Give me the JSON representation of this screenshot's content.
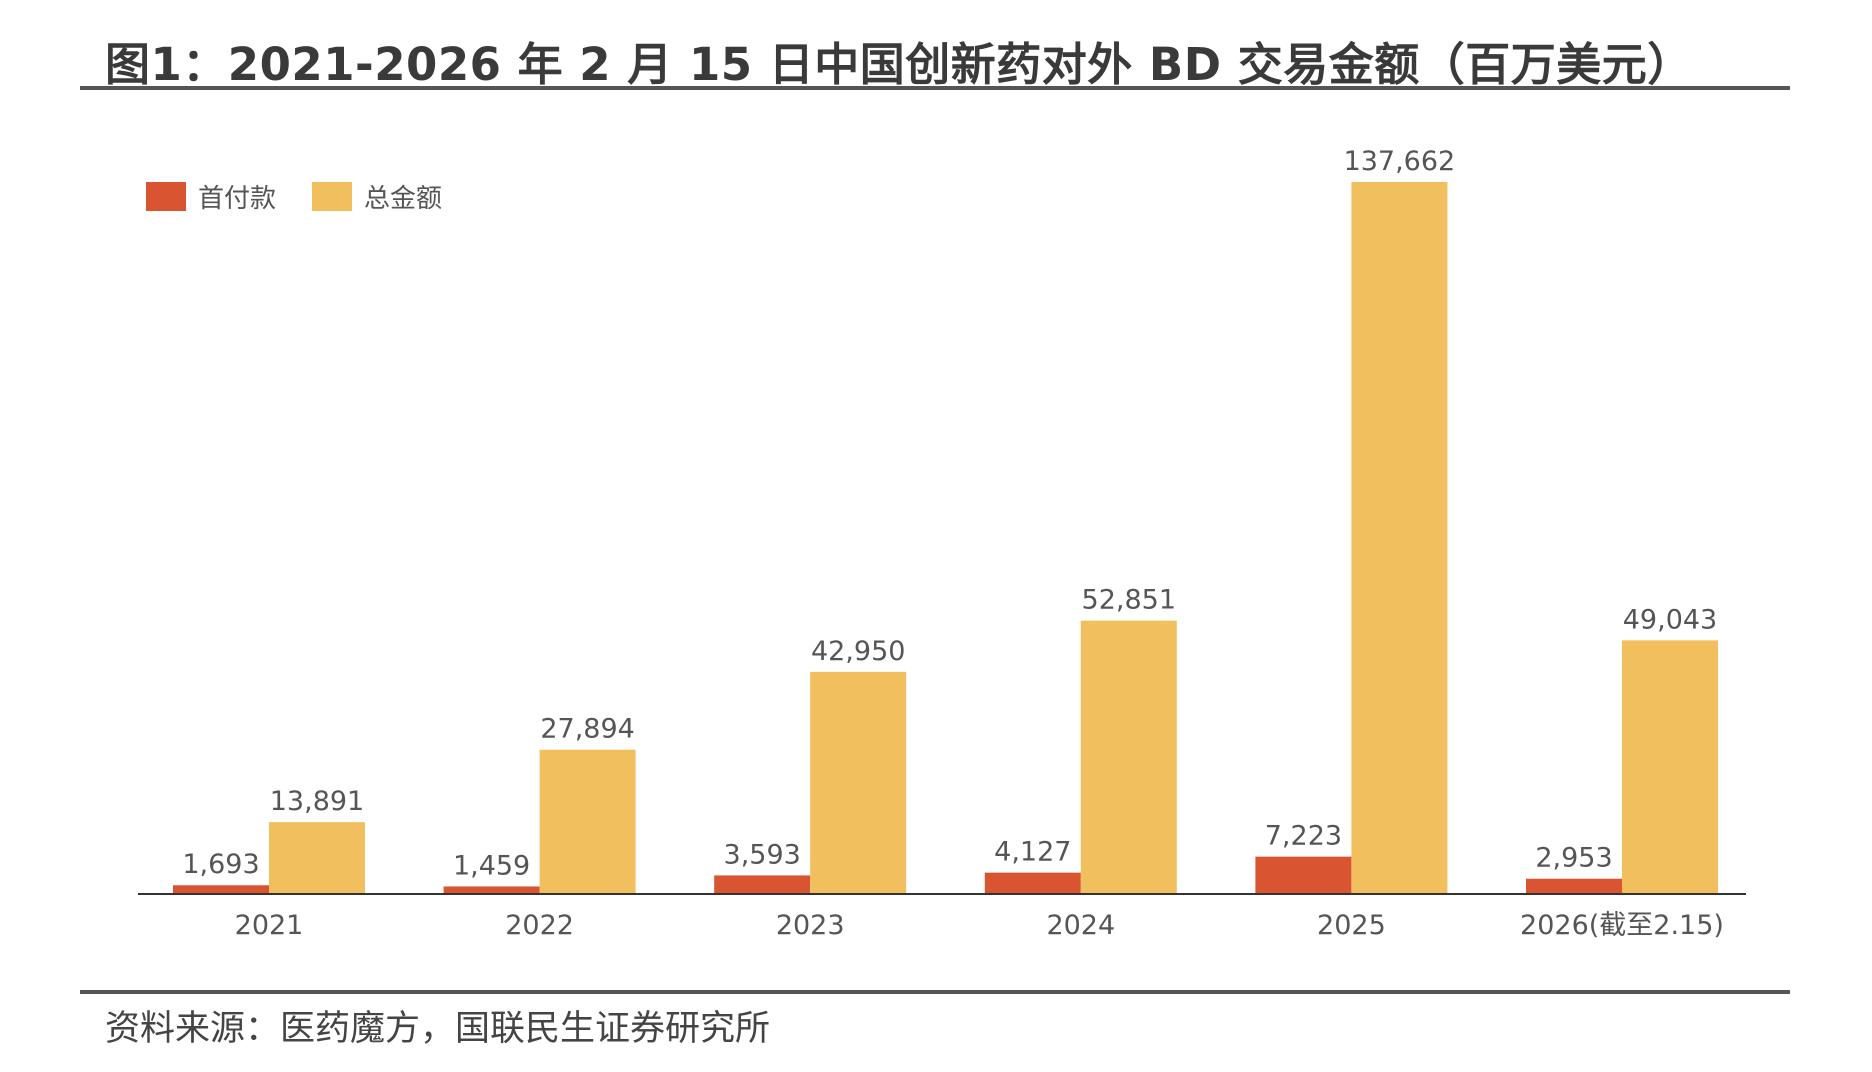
{
  "figure": {
    "title": "图1：2021-2026 年 2 月 15 日中国创新药对外 BD 交易金额（百万美元）",
    "source": "资料来源：医药魔方，国联民生证券研究所"
  },
  "chart_data": {
    "type": "bar",
    "title": "图1：2021-2026 年 2 月 15 日中国创新药对外 BD 交易金额（百万美元）",
    "xlabel": "",
    "ylabel": "",
    "categories": [
      "2021",
      "2022",
      "2023",
      "2024",
      "2025",
      "2026(截至2.15)"
    ],
    "series": [
      {
        "name": "首付款",
        "color": "#d95430",
        "values": [
          1693,
          1459,
          3593,
          4127,
          7223,
          2953
        ],
        "labels": [
          "1,693",
          "1,459",
          "3,593",
          "4,127",
          "7,223",
          "2,953"
        ]
      },
      {
        "name": "总金额",
        "color": "#f2bf5e",
        "values": [
          13891,
          27894,
          42950,
          52851,
          137662,
          49043
        ],
        "labels": [
          "13,891",
          "27,894",
          "42,950",
          "52,851",
          "137,662",
          "49,043"
        ]
      }
    ],
    "ylim": [
      0,
      137662
    ],
    "grid": false,
    "legend": "top-left"
  }
}
